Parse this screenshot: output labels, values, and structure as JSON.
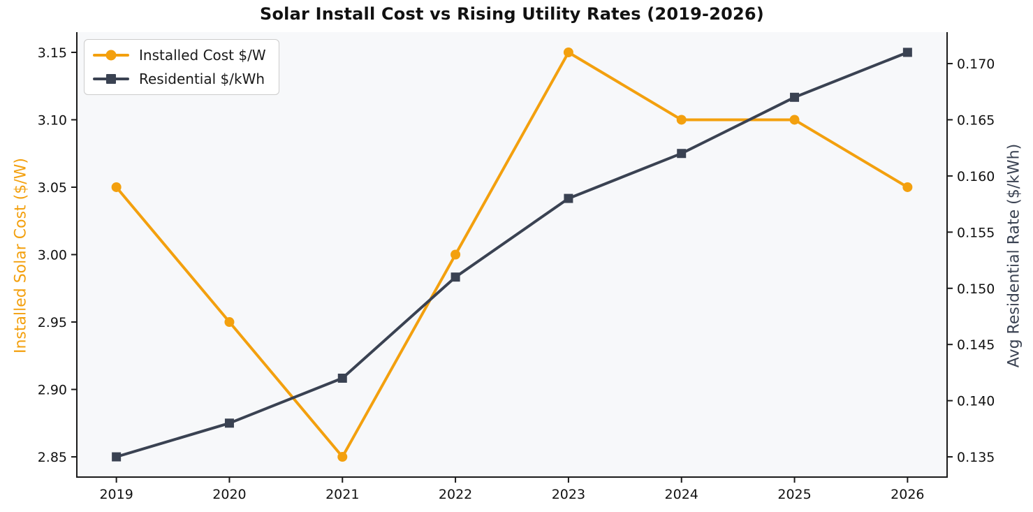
{
  "title": "Solar Install Cost vs Rising Utility Rates (2019-2026)",
  "colors": {
    "installed_cost": "#F3A00E",
    "residential_rate": "#3A4252",
    "plot_background": "#F7F8FA",
    "figure_background": "#FFFFFF",
    "axis_spine": "#1A1A1A",
    "tick_label": "#111111",
    "legend_border": "#CCCCCC"
  },
  "legend": {
    "position": "upper left",
    "items": [
      {
        "key": "installed_cost",
        "label": "Installed Cost $/W",
        "marker": "circle",
        "color": "#F3A00E"
      },
      {
        "key": "residential_rate",
        "label": "Residential $/kWh",
        "marker": "square",
        "color": "#3A4252"
      }
    ]
  },
  "x_axis": {
    "tick_labels": [
      "2019",
      "2020",
      "2021",
      "2022",
      "2023",
      "2024",
      "2025",
      "2026"
    ]
  },
  "left_axis": {
    "label": "Installed Solar Cost ($/W)",
    "color": "#F3A00E",
    "tick_values": [
      3.15,
      3.1,
      3.05,
      3.0,
      2.95,
      2.9,
      2.85
    ],
    "tick_labels": [
      "3.15",
      "3.10",
      "3.05",
      "3.00",
      "2.95",
      "2.90",
      "2.85"
    ]
  },
  "right_axis": {
    "label": "Avg Residential Rate ($/kWh)",
    "color": "#3A4252",
    "tick_values": [
      0.17,
      0.165,
      0.16,
      0.155,
      0.15,
      0.145,
      0.14,
      0.135
    ],
    "tick_labels": [
      "0.170",
      "0.165",
      "0.160",
      "0.155",
      "0.150",
      "0.145",
      "0.140",
      "0.135"
    ]
  },
  "chart_data": {
    "type": "line",
    "title": "Solar Install Cost vs Rising Utility Rates (2019-2026)",
    "categories": [
      "2019",
      "2020",
      "2021",
      "2022",
      "2023",
      "2024",
      "2025",
      "2026"
    ],
    "series": [
      {
        "key": "installed_cost",
        "name": "Installed Cost $/W",
        "axis": "left",
        "marker": "circle",
        "color": "#F3A00E",
        "values": [
          3.05,
          2.95,
          2.85,
          3.0,
          3.15,
          3.1,
          3.1,
          3.05
        ]
      },
      {
        "key": "residential_rate",
        "name": "Residential $/kWh",
        "axis": "right",
        "marker": "square",
        "color": "#3A4252",
        "values": [
          0.135,
          0.138,
          0.142,
          0.151,
          0.158,
          0.162,
          0.167,
          0.171
        ]
      }
    ],
    "xlabel": "",
    "ylabel_left": "Installed Solar Cost ($/W)",
    "ylabel_right": "Avg Residential Rate ($/kWh)",
    "ylim_left": [
      2.835,
      3.165
    ],
    "ylim_right": [
      0.1332,
      0.1728
    ],
    "xlim": [
      -0.35,
      7.35
    ],
    "grid": false,
    "legend_position": "upper left"
  }
}
